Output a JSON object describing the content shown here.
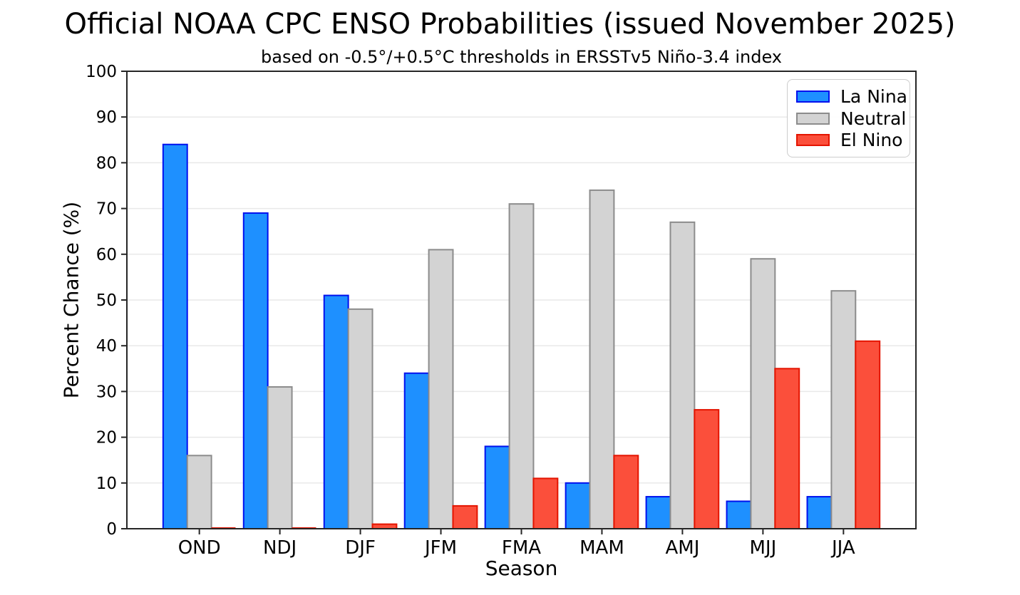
{
  "chart_data": {
    "type": "bar",
    "title": "Official NOAA CPC ENSO Probabilities (issued November 2025)",
    "subtitle": "based on -0.5°/+0.5°C thresholds in ERSSTv5 Niño-3.4 index",
    "xlabel": "Season",
    "ylabel": "Percent Chance (%)",
    "categories": [
      "OND",
      "NDJ",
      "DJF",
      "JFM",
      "FMA",
      "MAM",
      "AMJ",
      "MJJ",
      "JJA"
    ],
    "series": [
      {
        "name": "La Nina",
        "fill": "#1E90FF",
        "edge": "#0010EE",
        "values": [
          84,
          69,
          51,
          34,
          18,
          10,
          7,
          6,
          7
        ]
      },
      {
        "name": "Neutral",
        "fill": "#D3D3D3",
        "edge": "#8C8C8C",
        "values": [
          16,
          31,
          48,
          61,
          71,
          74,
          67,
          59,
          52
        ]
      },
      {
        "name": "El Nino",
        "fill": "#FB4F3B",
        "edge": "#E41400",
        "values": [
          0,
          0,
          1,
          5,
          11,
          16,
          26,
          35,
          41
        ]
      }
    ],
    "ylim": [
      0,
      100
    ],
    "ytick_step": 10,
    "grid": "horizontal",
    "grid_color": "#E9E9E9",
    "axis_color": "#262626",
    "legend_position": "top-right"
  }
}
